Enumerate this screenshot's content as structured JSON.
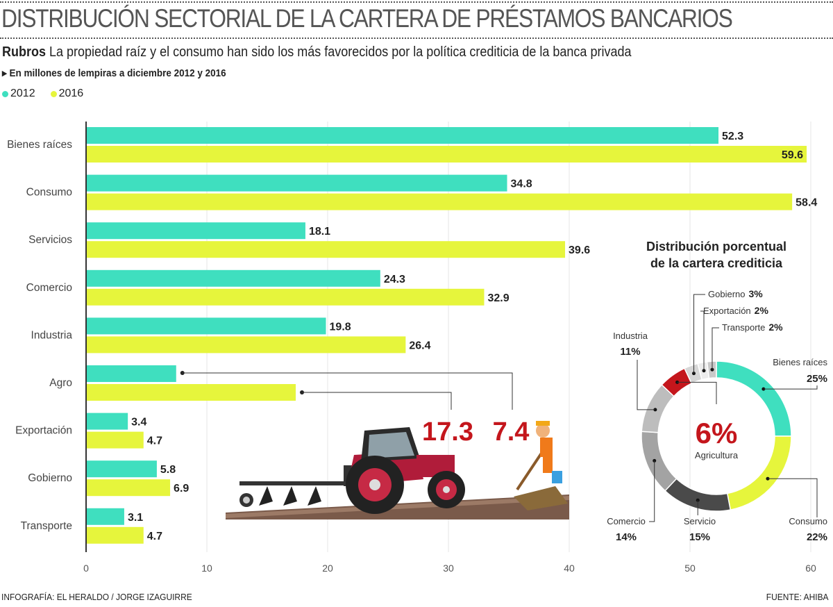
{
  "title": "DISTRIBUCIÓN SECTORIAL DE LA CARTERA DE PRÉSTAMOS BANCARIOS",
  "subtitle_bold": "Rubros",
  "subtitle": "La propiedad raíz y el consumo han sido los más favorecidos por la política crediticia de la banca privada",
  "unit": "▸ En millones de lempiras a diciembre 2012 y 2016",
  "footer_left": "INFOGRAFÍA: EL HERALDO / JORGE IZAGUIRRE",
  "footer_right": "FUENTE: AHIBA",
  "chart_data": [
    {
      "type": "bar",
      "orientation": "horizontal",
      "categories": [
        "Bienes raíces",
        "Consumo",
        "Servicios",
        "Comercio",
        "Industria",
        "Agro",
        "Exportación",
        "Gobierno",
        "Transporte"
      ],
      "series": [
        {
          "name": "2012",
          "color": "#3fdfbf",
          "values": [
            52.3,
            34.8,
            18.1,
            24.3,
            19.8,
            7.4,
            3.4,
            5.8,
            3.1
          ],
          "labels": [
            "52.3",
            "34.8",
            "18.1",
            "24.3",
            "19.8",
            "7.4",
            "3.4",
            "5.8",
            "3.1"
          ]
        },
        {
          "name": "2016",
          "color": "#e6f53c",
          "values": [
            59.6,
            58.4,
            39.6,
            32.9,
            26.4,
            17.3,
            4.7,
            6.9,
            4.7
          ],
          "labels": [
            "59.6",
            "58.4",
            "39.6",
            "32.9",
            "26.4",
            "17.3",
            "4.7",
            "6.9",
            "4.7"
          ]
        }
      ],
      "xlim": [
        0,
        60
      ],
      "xticks": [
        "0",
        "10",
        "20",
        "30",
        "40",
        "50",
        "60"
      ],
      "grid": true,
      "legend": "top-left",
      "callouts": {
        "agro_2016": "17.3",
        "agro_2012": "7.4",
        "color": "#c4161c"
      }
    },
    {
      "type": "pie",
      "donut": true,
      "title_line1": "Distribución porcentual",
      "title_line2": "de la cartera crediticia",
      "center_value": "6%",
      "center_label": "Agricultura",
      "slices": [
        {
          "name": "Bienes raíces",
          "value": 25,
          "label": "25%",
          "color": "#3fdfbf"
        },
        {
          "name": "Consumo",
          "value": 22,
          "label": "22%",
          "color": "#e6f53c"
        },
        {
          "name": "Servicio",
          "value": 15,
          "label": "15%",
          "color": "#4a4a4a"
        },
        {
          "name": "Comercio",
          "value": 14,
          "label": "14%",
          "color": "#a3a3a3"
        },
        {
          "name": "Industria",
          "value": 11,
          "label": "11%",
          "color": "#bdbdbd"
        },
        {
          "name": "Agricultura",
          "value": 6,
          "label": "6%",
          "color": "#c4161c"
        },
        {
          "name": "Gobierno",
          "value": 3,
          "label": "3%",
          "color": "#d6d6d6"
        },
        {
          "name": "Exportación",
          "value": 2,
          "label": "2%",
          "color": "#ececec"
        },
        {
          "name": "Transporte",
          "value": 2,
          "label": "2%",
          "color": "#c9c9c9"
        }
      ]
    }
  ]
}
